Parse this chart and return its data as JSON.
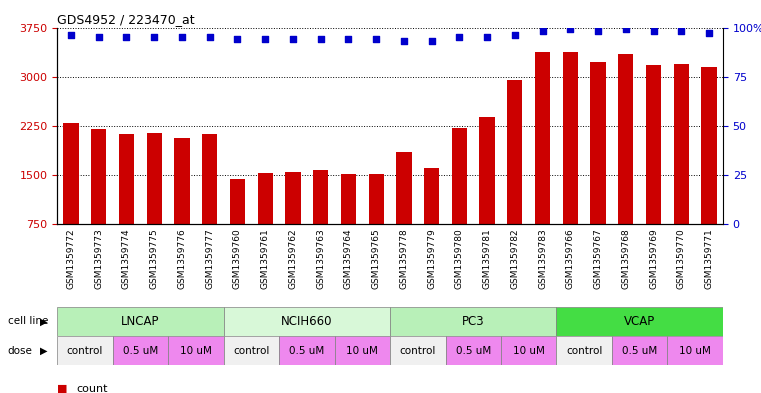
{
  "title": "GDS4952 / 223470_at",
  "samples": [
    "GSM1359772",
    "GSM1359773",
    "GSM1359774",
    "GSM1359775",
    "GSM1359776",
    "GSM1359777",
    "GSM1359760",
    "GSM1359761",
    "GSM1359762",
    "GSM1359763",
    "GSM1359764",
    "GSM1359765",
    "GSM1359778",
    "GSM1359779",
    "GSM1359780",
    "GSM1359781",
    "GSM1359782",
    "GSM1359783",
    "GSM1359766",
    "GSM1359767",
    "GSM1359768",
    "GSM1359769",
    "GSM1359770",
    "GSM1359771"
  ],
  "bar_values": [
    2290,
    2200,
    2130,
    2140,
    2060,
    2120,
    1430,
    1530,
    1550,
    1580,
    1510,
    1510,
    1850,
    1610,
    2220,
    2380,
    2950,
    3380,
    3380,
    3230,
    3350,
    3180,
    3200,
    3140
  ],
  "percentile_values": [
    96,
    95,
    95,
    95,
    95,
    95,
    94,
    94,
    94,
    94,
    94,
    94,
    93,
    93,
    95,
    95,
    96,
    98,
    99,
    98,
    99,
    98,
    98,
    97
  ],
  "cell_lines": [
    {
      "name": "LNCAP",
      "start": 0,
      "end": 6,
      "color": "#b8f0b8"
    },
    {
      "name": "NCIH660",
      "start": 6,
      "end": 12,
      "color": "#d8f8d8"
    },
    {
      "name": "PC3",
      "start": 12,
      "end": 18,
      "color": "#b8f0b8"
    },
    {
      "name": "VCAP",
      "start": 18,
      "end": 24,
      "color": "#44dd44"
    }
  ],
  "dose_groups": [
    {
      "label": "control",
      "start": 0,
      "end": 2,
      "color": "#f0f0f0"
    },
    {
      "label": "0.5 uM",
      "start": 2,
      "end": 4,
      "color": "#ee88ee"
    },
    {
      "label": "10 uM",
      "start": 4,
      "end": 6,
      "color": "#ee88ee"
    },
    {
      "label": "control",
      "start": 6,
      "end": 8,
      "color": "#f0f0f0"
    },
    {
      "label": "0.5 uM",
      "start": 8,
      "end": 10,
      "color": "#ee88ee"
    },
    {
      "label": "10 uM",
      "start": 10,
      "end": 12,
      "color": "#ee88ee"
    },
    {
      "label": "control",
      "start": 12,
      "end": 14,
      "color": "#f0f0f0"
    },
    {
      "label": "0.5 uM",
      "start": 14,
      "end": 16,
      "color": "#ee88ee"
    },
    {
      "label": "10 uM",
      "start": 16,
      "end": 18,
      "color": "#ee88ee"
    },
    {
      "label": "control",
      "start": 18,
      "end": 20,
      "color": "#f0f0f0"
    },
    {
      "label": "0.5 uM",
      "start": 20,
      "end": 22,
      "color": "#ee88ee"
    },
    {
      "label": "10 uM",
      "start": 22,
      "end": 24,
      "color": "#ee88ee"
    }
  ],
  "ylim_left": [
    750,
    3750
  ],
  "ylim_right": [
    0,
    100
  ],
  "yticks_left": [
    750,
    1500,
    2250,
    3000,
    3750
  ],
  "yticks_right": [
    0,
    25,
    50,
    75,
    100
  ],
  "bar_color": "#cc0000",
  "percentile_color": "#0000cc",
  "grid_color": "#000000"
}
